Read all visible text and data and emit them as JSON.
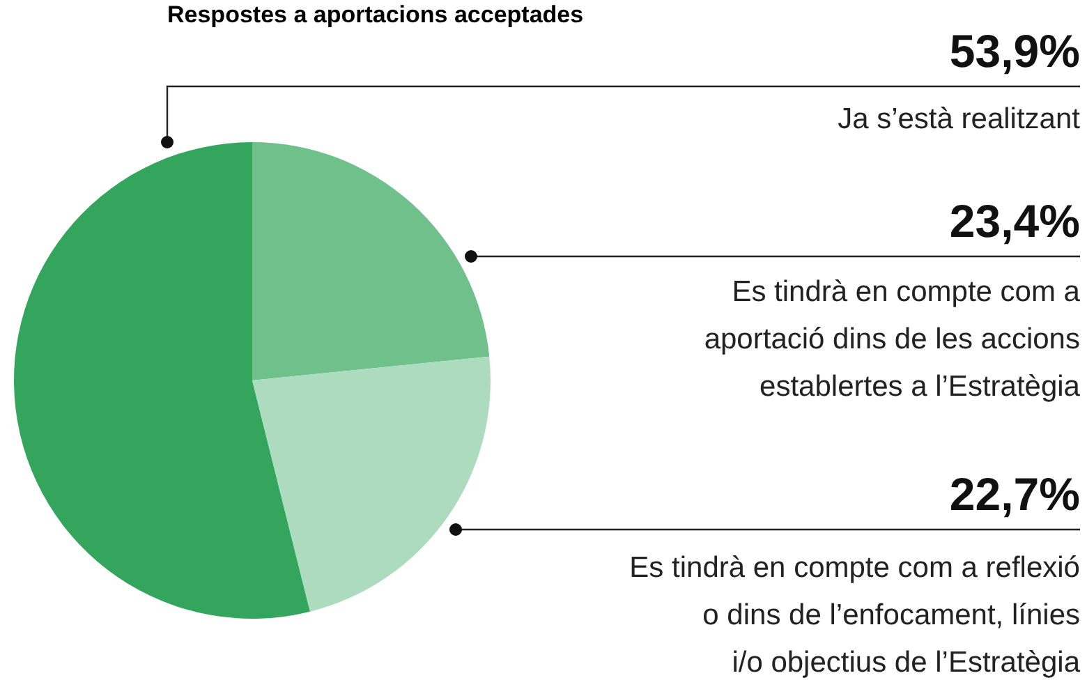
{
  "chart_data": {
    "type": "pie",
    "title": "Respostes a aportacions acceptades",
    "categories": [
      "Ja s’està realitzant",
      "Es tindrà en compte com a\naportació dins de les accions\nestablertes a l’Estratègia",
      "Es tindrà en compte com a reflexió\no dins de l’enfocament, línies\ni/o objectius de l’Estratègia"
    ],
    "values": [
      53.9,
      23.4,
      22.7
    ],
    "colors": [
      "#34a55c",
      "#70c08c",
      "#acdcbd"
    ],
    "value_labels": [
      "53,9%",
      "23,4%",
      "22,7%"
    ],
    "legend": false
  }
}
